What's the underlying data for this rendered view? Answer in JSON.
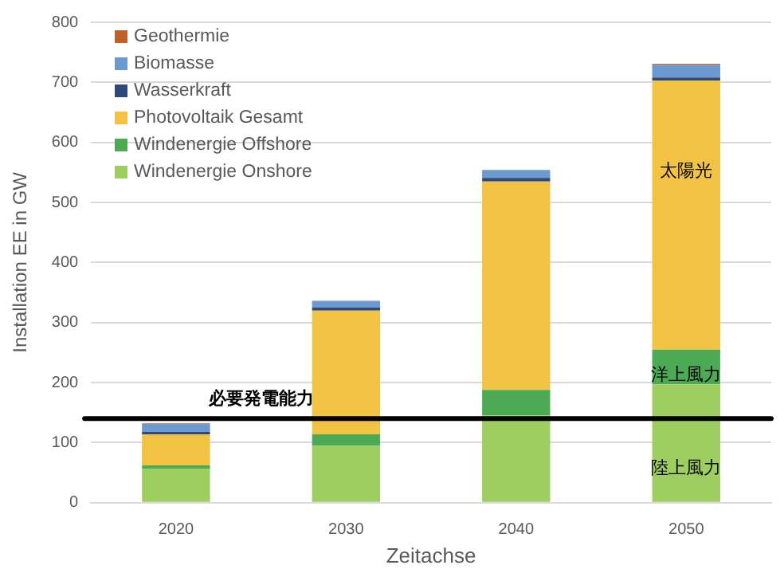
{
  "chart_data": {
    "type": "bar",
    "stacked": true,
    "xlabel": "Zeitachse",
    "ylabel": "Installation EE in GW",
    "categories": [
      "2020",
      "2030",
      "2040",
      "2050"
    ],
    "series": [
      {
        "name": "Windenergie Onshore",
        "color": "#9dce5f",
        "values": [
          56,
          95,
          145,
          197
        ]
      },
      {
        "name": "Windenergie Offshore",
        "color": "#4caa55",
        "values": [
          6,
          19,
          43,
          58
        ]
      },
      {
        "name": "Photovoltaik Gesamt",
        "color": "#f2c242",
        "values": [
          52,
          206,
          347,
          448
        ]
      },
      {
        "name": "Wasserkraft",
        "color": "#2f4a7a",
        "values": [
          4,
          5,
          6,
          5
        ]
      },
      {
        "name": "Biomasse",
        "color": "#6a9ad0",
        "values": [
          13,
          11,
          13,
          21
        ]
      },
      {
        "name": "Geothermie",
        "color": "#c0602a",
        "values": [
          1,
          null,
          null,
          2
        ]
      }
    ],
    "ylim": [
      0,
      800
    ],
    "yticks": [
      0,
      100,
      200,
      300,
      400,
      500,
      600,
      700,
      800
    ],
    "grid": "y",
    "legend": "top left",
    "ref_lines": [
      {
        "axis": "y",
        "value": 140,
        "label": "必要発電能力",
        "color": "#000000"
      }
    ],
    "annotations": [
      "太陽光",
      "洋上風力",
      "陸上風力"
    ]
  }
}
